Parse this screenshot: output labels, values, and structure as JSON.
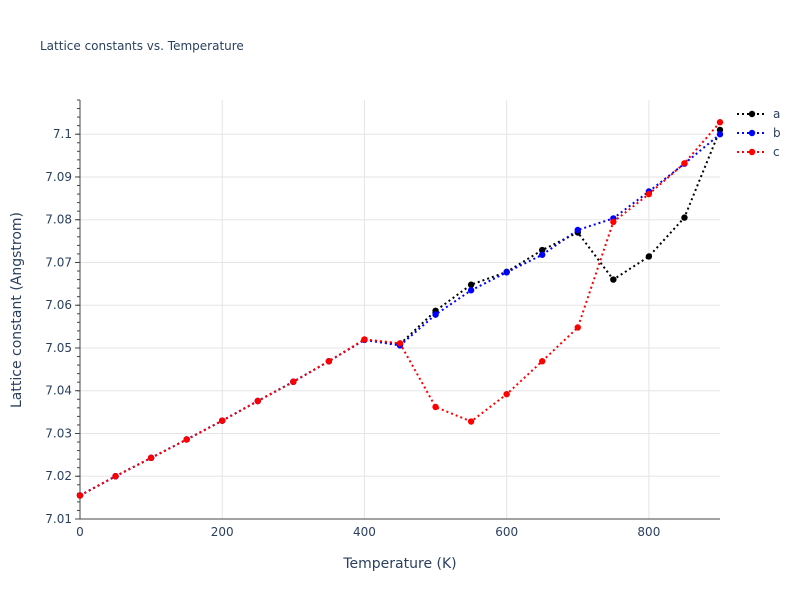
{
  "chart_data": {
    "type": "line",
    "title": "Lattice constants vs. Temperature",
    "xlabel": "Temperature (K)",
    "ylabel": "Lattice constant (Angstrom)",
    "xlim": [
      0,
      900
    ],
    "ylim": [
      7.01,
      7.108
    ],
    "x_ticks": [
      0,
      200,
      400,
      600,
      800
    ],
    "y_ticks": [
      7.01,
      7.02,
      7.03,
      7.04,
      7.05,
      7.06,
      7.07,
      7.08,
      7.09,
      7.1
    ],
    "y_tick_labels": [
      "7.01",
      "7.02",
      "7.03",
      "7.04",
      "7.05",
      "7.06",
      "7.07",
      "7.08",
      "7.09",
      "7.1"
    ],
    "x_tick_labels": [
      "0",
      "200",
      "400",
      "600",
      "800"
    ],
    "grid": true,
    "legend_position": "top-right",
    "x": [
      0,
      50,
      100,
      150,
      200,
      250,
      300,
      350,
      400,
      450,
      500,
      550,
      600,
      650,
      700,
      750,
      800,
      850,
      900
    ],
    "series": [
      {
        "name": "a",
        "color": "#000000",
        "values": [
          7.0155,
          7.02,
          7.0243,
          7.0286,
          7.033,
          7.0376,
          7.0421,
          7.0469,
          7.0519,
          7.0509,
          7.0587,
          7.0648,
          7.0678,
          7.0729,
          7.077,
          7.066,
          7.0714,
          7.0805,
          7.101
        ]
      },
      {
        "name": "b",
        "color": "#0000ff",
        "values": [
          7.0155,
          7.02,
          7.0243,
          7.0286,
          7.033,
          7.0376,
          7.0421,
          7.0469,
          7.0519,
          7.0506,
          7.0578,
          7.0635,
          7.0677,
          7.0718,
          7.0776,
          7.0803,
          7.0866,
          7.0931,
          7.1
        ]
      },
      {
        "name": "c",
        "color": "#ff0000",
        "values": [
          7.0155,
          7.02,
          7.0243,
          7.0286,
          7.033,
          7.0376,
          7.0421,
          7.0469,
          7.052,
          7.0511,
          7.0362,
          7.0328,
          7.0392,
          7.0469,
          7.0548,
          7.0795,
          7.086,
          7.0932,
          7.1028
        ]
      }
    ]
  }
}
